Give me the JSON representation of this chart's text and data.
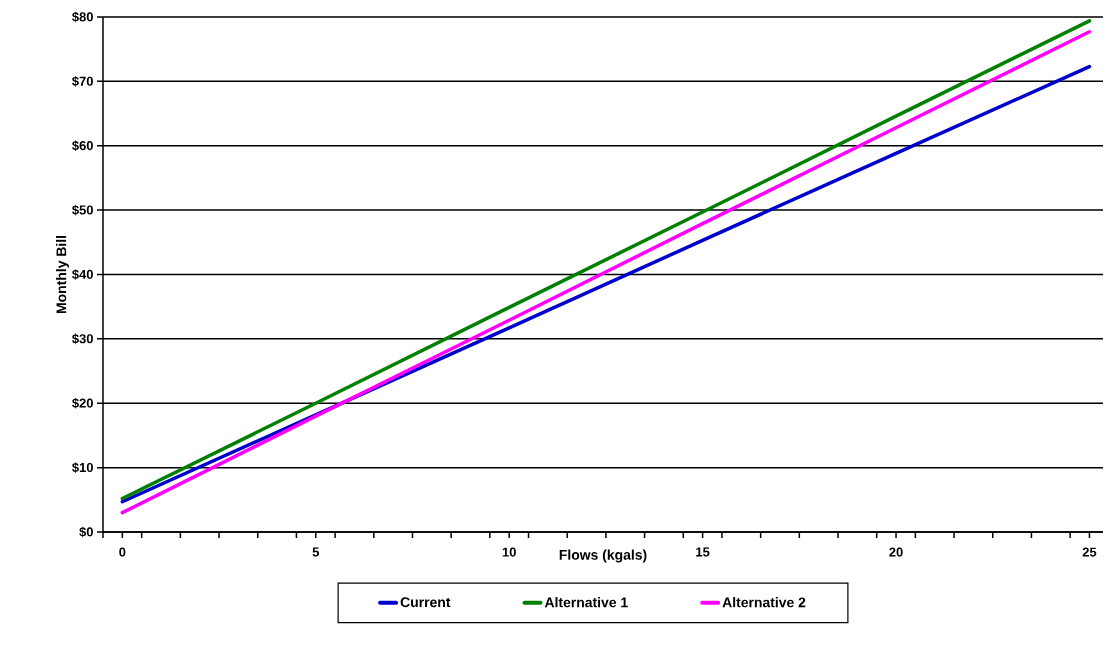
{
  "chart_data": {
    "type": "line",
    "xlabel": "Flows (kgals)",
    "ylabel": "Monthly Bill",
    "x": [
      0,
      5,
      10,
      15,
      20,
      25
    ],
    "series": [
      {
        "name": "Current",
        "color": "#0000cc",
        "values": [
          4.7,
          18.2,
          31.7,
          45.3,
          58.8,
          72.3
        ]
      },
      {
        "name": "Alternative 1",
        "color": "#008000",
        "values": [
          5.2,
          20.0,
          34.9,
          49.7,
          64.6,
          79.4
        ]
      },
      {
        "name": "Alternative 2",
        "color": "#ff00ff",
        "values": [
          3.0,
          18.0,
          32.9,
          47.9,
          62.8,
          77.7
        ]
      }
    ],
    "xlim": [
      -0.5,
      25.35
    ],
    "ylim": [
      0,
      80
    ],
    "xticks": [
      0,
      5,
      10,
      15,
      20,
      25,
      {
        "value": -0.5,
        "label": null
      },
      {
        "value": 0.5,
        "label": null
      },
      {
        "value": 1.5,
        "label": null
      },
      {
        "value": 2.5,
        "label": null
      },
      {
        "value": 3.5,
        "label": null
      },
      {
        "value": 4.5,
        "label": null
      },
      {
        "value": 5.5,
        "label": null
      },
      {
        "value": 6.5,
        "label": null
      },
      {
        "value": 7.5,
        "label": null
      },
      {
        "value": 8.5,
        "label": null
      },
      {
        "value": 9.5,
        "label": null
      },
      {
        "value": 10.5,
        "label": null
      },
      {
        "value": 11.5,
        "label": null
      },
      {
        "value": 12.5,
        "label": null
      },
      {
        "value": 13.5,
        "label": null
      },
      {
        "value": 14.5,
        "label": null
      },
      {
        "value": 15.5,
        "label": null
      },
      {
        "value": 16.5,
        "label": null
      },
      {
        "value": 17.5,
        "label": null
      },
      {
        "value": 18.5,
        "label": null
      },
      {
        "value": 19.5,
        "label": null
      },
      {
        "value": 20.5,
        "label": null
      },
      {
        "value": 21.5,
        "label": null
      },
      {
        "value": 22.5,
        "label": null
      },
      {
        "value": 23.5,
        "label": null
      },
      {
        "value": 24.5,
        "label": null
      }
    ],
    "yticks": [
      {
        "value": 0,
        "label": "$0"
      },
      {
        "value": 10,
        "label": "$10"
      },
      {
        "value": 20,
        "label": "$20"
      },
      {
        "value": 30,
        "label": "$30"
      },
      {
        "value": 40,
        "label": "$40"
      },
      {
        "value": 50,
        "label": "$50"
      },
      {
        "value": 60,
        "label": "$60"
      },
      {
        "value": 70,
        "label": "$70"
      },
      {
        "value": 80,
        "label": "$80"
      }
    ],
    "grid": "y",
    "legend": "bottom"
  }
}
